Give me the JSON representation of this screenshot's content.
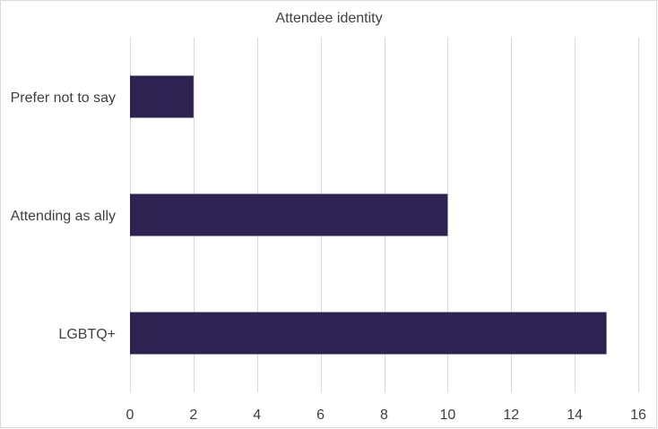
{
  "chart_data": {
    "type": "bar",
    "orientation": "horizontal",
    "title": "Attendee identity",
    "categories": [
      "Prefer not to say",
      "Attending as ally",
      "LGBTQ+"
    ],
    "values": [
      2,
      10,
      15
    ],
    "xlim": [
      0,
      16
    ],
    "xticks": [
      0,
      2,
      4,
      6,
      8,
      10,
      12,
      14,
      16
    ],
    "xlabel": "",
    "ylabel": "",
    "grid": "vertical",
    "legend": "none",
    "bar_color": "#2e2350",
    "grid_color": "#d9d9d9",
    "text_color": "#404040"
  }
}
